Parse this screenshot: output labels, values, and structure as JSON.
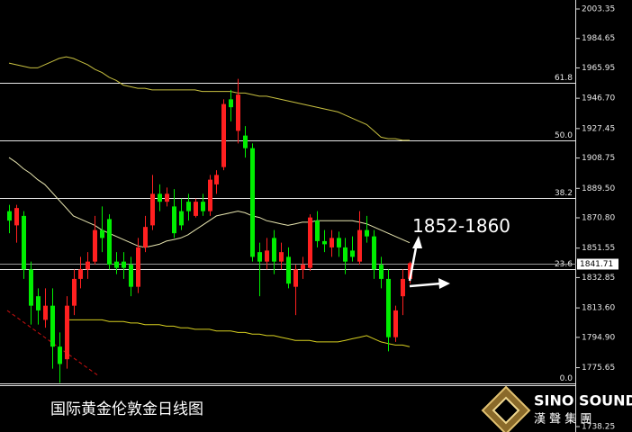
{
  "chart_data": {
    "type": "candlestick",
    "title": "国际黄金伦敦金日线图",
    "annotation": "1852-1860",
    "brand": {
      "name": "SINO SOUND",
      "subtitle": "漢 聲 集 團"
    },
    "ylim": [
      1738.25,
      2003.35
    ],
    "yticks": [
      2003.35,
      1984.65,
      1965.95,
      {
        "value": 1946.7,
        "label": "1946.70"
      },
      1927.45,
      1908.75,
      {
        "value": 1889.5,
        "label": "1889.50"
      },
      {
        "value": 1870.8,
        "label": "1870.80"
      },
      1851.55,
      1832.85,
      {
        "value": 1813.6,
        "label": "1813.60"
      },
      {
        "value": 1794.9,
        "label": "1794.90"
      },
      1775.65,
      1738.25
    ],
    "up_color": "#ff2020",
    "down_color": "#00ee00",
    "current_price": 1841.71,
    "levels": [
      {
        "label": "61.8",
        "value": 1956.5
      },
      {
        "label": "50.0",
        "value": 1920
      },
      {
        "label": "38.2",
        "value": 1883.5
      },
      {
        "label": "23.6",
        "value": 1838.5
      },
      {
        "label": "0.0",
        "value": 1765.7
      }
    ],
    "open": [
      1875,
      1866,
      1872,
      1838,
      1821,
      1806,
      1815,
      1789,
      1781,
      1815,
      1832,
      1838,
      1843,
      1863,
      1870,
      1843,
      1843,
      1841,
      1827,
      1852,
      1866,
      1886,
      1881,
      1878,
      1875,
      1881,
      1872,
      1881,
      1875,
      1892,
      1903,
      1946,
      1926,
      1923,
      1915,
      1849,
      1843,
      1858,
      1843,
      1846,
      1827,
      1838,
      1839,
      1869,
      1856,
      1852,
      1858,
      1852,
      1850,
      1843,
      1863,
      1859,
      1841,
      1832,
      1795,
      1821,
      1832
    ],
    "high": [
      1879,
      1879,
      1875,
      1843,
      1826,
      1826,
      1826,
      1798,
      1821,
      1838,
      1846,
      1849,
      1872,
      1878,
      1873,
      1849,
      1849,
      1846,
      1858,
      1872,
      1898,
      1892,
      1890,
      1889,
      1883,
      1886,
      1883,
      1886,
      1898,
      1901,
      1946,
      1952,
      1959,
      1929,
      1918,
      1855,
      1858,
      1863,
      1855,
      1852,
      1841,
      1846,
      1873,
      1875,
      1863,
      1863,
      1862,
      1858,
      1859,
      1875,
      1872,
      1863,
      1846,
      1838,
      1815,
      1838,
      1843
    ],
    "low": [
      1861,
      1855,
      1832,
      1803,
      1803,
      1801,
      1775,
      1766,
      1775,
      1809,
      1826,
      1832,
      1841,
      1849,
      1838,
      1835,
      1832,
      1821,
      1823,
      1849,
      1863,
      1875,
      1878,
      1858,
      1863,
      1869,
      1871,
      1872,
      1872,
      1886,
      1901,
      1932,
      1918,
      1909,
      1843,
      1821,
      1838,
      1835,
      1838,
      1826,
      1809,
      1832,
      1837,
      1852,
      1849,
      1846,
      1846,
      1835,
      1843,
      1841,
      1855,
      1832,
      1826,
      1786,
      1792,
      1809,
      1829
    ],
    "close": [
      1869,
      1877,
      1838,
      1815,
      1812,
      1815,
      1789,
      1778,
      1815,
      1832,
      1838,
      1843,
      1863,
      1858,
      1841,
      1839,
      1839,
      1827,
      1852,
      1865,
      1886,
      1881,
      1886,
      1861,
      1866,
      1875,
      1881,
      1875,
      1895,
      1898,
      1943,
      1941,
      1949,
      1915,
      1846,
      1843,
      1850,
      1843,
      1849,
      1829,
      1838,
      1841,
      1871,
      1856,
      1854,
      1858,
      1852,
      1843,
      1846,
      1863,
      1859,
      1838,
      1832,
      1795,
      1812,
      1832,
      1842
    ],
    "lines": [
      {
        "color": "#c8c040",
        "values": [
          1969,
          1968,
          1967,
          1966,
          1966,
          1968,
          1970,
          1972,
          1973,
          1972,
          1970,
          1968,
          1965,
          1963,
          1960,
          1958,
          1955,
          1954,
          1953,
          1953,
          1952,
          1952,
          1952,
          1952,
          1952,
          1952,
          1952,
          1951,
          1951,
          1951,
          1951,
          1951,
          1950,
          1950,
          1949,
          1948,
          1948,
          1947,
          1946,
          1945,
          1944,
          1943,
          1942,
          1941,
          1940,
          1939,
          1938,
          1936,
          1934,
          1932,
          1930,
          1926,
          1922,
          1921,
          1921,
          1920,
          1920
        ]
      },
      {
        "color": "#e8e6b0",
        "values": [
          1909,
          1906,
          1902,
          1899,
          1895,
          1892,
          1887,
          1882,
          1877,
          1872,
          1870,
          1868,
          1866,
          1863,
          1861,
          1859,
          1857,
          1855,
          1853,
          1852,
          1853,
          1854,
          1856,
          1857,
          1858,
          1860,
          1863,
          1866,
          1869,
          1872,
          1873,
          1874,
          1875,
          1874,
          1872,
          1871,
          1869,
          1868,
          1867,
          1866,
          1867,
          1868,
          1868,
          1869,
          1869,
          1869,
          1869,
          1869,
          1869,
          1868,
          1867,
          1865,
          1863,
          1861,
          1859,
          1857,
          1855
        ]
      },
      {
        "color": "#d8d020",
        "values": [
          null,
          null,
          null,
          null,
          null,
          null,
          null,
          null,
          1806,
          1806,
          1806,
          1806,
          1806,
          1806,
          1805,
          1805,
          1805,
          1804,
          1804,
          1803,
          1803,
          1803,
          1802,
          1802,
          1801,
          1801,
          1800,
          1800,
          1800,
          1799,
          1799,
          1799,
          1798,
          1798,
          1797,
          1797,
          1796,
          1796,
          1795,
          1794,
          1793,
          1793,
          1793,
          1792,
          1792,
          1792,
          1792,
          1793,
          1794,
          1795,
          1796,
          1794,
          1792,
          1791,
          1790,
          1790,
          1789
        ]
      }
    ]
  }
}
